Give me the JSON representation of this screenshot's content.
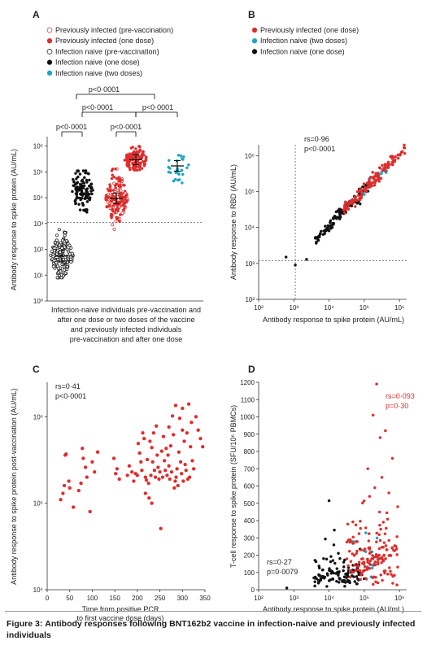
{
  "colors": {
    "red": "#e02c2c",
    "black": "#111111",
    "cyan": "#1ba6bd",
    "axis": "#333333",
    "dash": "#666666"
  },
  "caption": {
    "label": "Figure 3:",
    "text": "Antibody responses following BNT162b2 vaccine in infection-naive and previously infected individuals"
  },
  "chart_data": [
    {
      "panel": "A",
      "type": "scatter",
      "ylabel": "Antibody response to spike protein (AU/mL)",
      "xlabel_lines": [
        "Infection-naive individuals pre-vaccination and",
        "after one dose or two doses of the vaccine",
        "and previously infected individuals",
        "pre-vaccination and after one dose"
      ],
      "y_ticks": [
        {
          "value": 1,
          "label": "10⁰"
        },
        {
          "value": 10,
          "label": "10¹"
        },
        {
          "value": 100,
          "label": "10²"
        },
        {
          "value": 1000,
          "label": "10³"
        },
        {
          "value": 10000,
          "label": "10⁴"
        },
        {
          "value": 100000,
          "label": "10⁵"
        },
        {
          "value": 1000000,
          "label": "10⁶"
        }
      ],
      "ylim": [
        1,
        2000000
      ],
      "yscale": "log",
      "threshold": 1100,
      "legend": [
        {
          "name": "Previously infected (pre-vaccination)",
          "color": "#e02c2c",
          "style": "open"
        },
        {
          "name": "Previously infected (one dose)",
          "color": "#e02c2c",
          "style": "filled"
        },
        {
          "name": "Infection naive (pre-vaccination)",
          "color": "#111111",
          "style": "open"
        },
        {
          "name": "Infection naive (one dose)",
          "color": "#111111",
          "style": "filled"
        },
        {
          "name": "Infection naive (two doses)",
          "color": "#1ba6bd",
          "style": "filled"
        }
      ],
      "groups": [
        {
          "name": "Infection naive (pre-vaccination)",
          "median": 55,
          "spread": [
            8,
            900
          ],
          "n": 160
        },
        {
          "name": "Infection naive (one dose)",
          "median": 22000,
          "spread": [
            700,
            110000
          ],
          "n": 110
        },
        {
          "name": "Previously infected (pre-vaccination) / Infection naive (two doses)",
          "median": 9500,
          "spread": [
            600,
            130000
          ],
          "n": 190
        },
        {
          "name": "Previously infected (one dose)",
          "median": 300000,
          "spread": [
            80000,
            1500000
          ],
          "n": 110
        },
        {
          "name": "Infection naive (two doses)",
          "median": 170000,
          "spread": [
            15000,
            600000
          ],
          "n": 26
        }
      ],
      "comparisons": [
        "p<0·0001",
        "p<0·0001",
        "p<0·0001",
        "p<0·0001",
        "p<0·0001"
      ]
    },
    {
      "panel": "B",
      "type": "scatter",
      "xscale": "log",
      "yscale": "log",
      "xlabel": "Antibody response to spike protein (AU/mL)",
      "ylabel": "Antibody response to RBD (AU/mL)",
      "x_ticks": [
        {
          "value": 100,
          "label": "10²"
        },
        {
          "value": 1000,
          "label": "10³"
        },
        {
          "value": 10000,
          "label": "10⁴"
        },
        {
          "value": 100000,
          "label": "10⁵"
        },
        {
          "value": 1000000,
          "label": "10⁶"
        }
      ],
      "y_ticks": [
        {
          "value": 100,
          "label": "10²"
        },
        {
          "value": 1000,
          "label": "10³"
        },
        {
          "value": 10000,
          "label": "10⁴"
        },
        {
          "value": 100000,
          "label": "10⁵"
        },
        {
          "value": 1000000,
          "label": "10⁶"
        }
      ],
      "xlim": [
        100,
        1600000
      ],
      "ylim": [
        100,
        2000000
      ],
      "threshold_x": 1100,
      "threshold_y": 1200,
      "annotation_lines": [
        "rs=0·96",
        "p<0·0001"
      ],
      "legend": [
        {
          "name": "Previously infected (one dose)",
          "color": "#e02c2c"
        },
        {
          "name": "Infection naive (two doses)",
          "color": "#1ba6bd"
        },
        {
          "name": "Infection naive (one dose)",
          "color": "#111111"
        }
      ]
    },
    {
      "panel": "C",
      "type": "scatter",
      "yscale": "log",
      "xlabel_lines": [
        "Time from positive PCR",
        "to first vaccine dose (days)"
      ],
      "ylabel": "Antibody response to spike protein post-vaccination (AU/mL)",
      "x_ticks": [
        0,
        50,
        100,
        150,
        200,
        250,
        300,
        350
      ],
      "xlim": [
        0,
        350
      ],
      "y_ticks": [
        {
          "value": 10000,
          "label": "10⁴"
        },
        {
          "value": 100000,
          "label": "10⁵"
        },
        {
          "value": 1000000,
          "label": "10⁶"
        }
      ],
      "ylim": [
        10000,
        2500000
      ],
      "annotation_lines": [
        "rs=0·41",
        "p<0·0001"
      ],
      "points": [
        [
          30,
          110000
        ],
        [
          35,
          130000
        ],
        [
          38,
          160000
        ],
        [
          40,
          360000
        ],
        [
          42,
          370000
        ],
        [
          48,
          180000
        ],
        [
          50,
          150000
        ],
        [
          58,
          90000
        ],
        [
          70,
          140000
        ],
        [
          75,
          170000
        ],
        [
          78,
          430000
        ],
        [
          80,
          330000
        ],
        [
          85,
          260000
        ],
        [
          88,
          200000
        ],
        [
          95,
          80000
        ],
        [
          100,
          300000
        ],
        [
          105,
          230000
        ],
        [
          112,
          390000
        ],
        [
          148,
          330000
        ],
        [
          152,
          220000
        ],
        [
          155,
          250000
        ],
        [
          160,
          190000
        ],
        [
          178,
          210000
        ],
        [
          182,
          270000
        ],
        [
          188,
          230000
        ],
        [
          192,
          180000
        ],
        [
          196,
          220000
        ],
        [
          200,
          210000
        ],
        [
          202,
          490000
        ],
        [
          205,
          380000
        ],
        [
          208,
          300000
        ],
        [
          210,
          240000
        ],
        [
          212,
          650000
        ],
        [
          215,
          560000
        ],
        [
          218,
          200000
        ],
        [
          220,
          185000
        ],
        [
          222,
          320000
        ],
        [
          225,
          170000
        ],
        [
          228,
          520000
        ],
        [
          230,
          210000
        ],
        [
          232,
          440000
        ],
        [
          234,
          300000
        ],
        [
          236,
          650000
        ],
        [
          238,
          240000
        ],
        [
          240,
          200000
        ],
        [
          242,
          780000
        ],
        [
          244,
          360000
        ],
        [
          246,
          260000
        ],
        [
          248,
          190000
        ],
        [
          250,
          230000
        ],
        [
          252,
          51000
        ],
        [
          254,
          400000
        ],
        [
          256,
          200000
        ],
        [
          258,
          590000
        ],
        [
          260,
          310000
        ],
        [
          262,
          240000
        ],
        [
          264,
          430000
        ],
        [
          266,
          210000
        ],
        [
          268,
          360000
        ],
        [
          270,
          270000
        ],
        [
          272,
          190000
        ],
        [
          274,
          460000
        ],
        [
          276,
          230000
        ],
        [
          278,
          1020000
        ],
        [
          280,
          620000
        ],
        [
          282,
          150000
        ],
        [
          284,
          180000
        ],
        [
          286,
          200000
        ],
        [
          288,
          250000
        ],
        [
          290,
          160000
        ],
        [
          292,
          390000
        ],
        [
          294,
          960000
        ],
        [
          296,
          300000
        ],
        [
          298,
          220000
        ],
        [
          300,
          700000
        ],
        [
          302,
          180000
        ],
        [
          304,
          520000
        ],
        [
          306,
          280000
        ],
        [
          308,
          240000
        ],
        [
          310,
          650000
        ],
        [
          312,
          190000
        ],
        [
          314,
          1400000
        ],
        [
          316,
          200000
        ],
        [
          318,
          450000
        ],
        [
          320,
          860000
        ],
        [
          322,
          310000
        ],
        [
          325,
          250000
        ],
        [
          330,
          1000000
        ],
        [
          335,
          700000
        ],
        [
          340,
          560000
        ],
        [
          345,
          450000
        ],
        [
          218,
          130000
        ],
        [
          226,
          115000
        ],
        [
          232,
          100000
        ],
        [
          270,
          760000
        ],
        [
          300,
          1250000
        ],
        [
          285,
          1350000
        ]
      ]
    },
    {
      "panel": "D",
      "type": "scatter",
      "xscale": "log",
      "xlabel": "Antibody response to spike protein (AU/mL)",
      "ylabel": "T-cell response to spike protein (SFU/10⁶ PBMCs)",
      "x_ticks": [
        {
          "value": 100,
          "label": "10²"
        },
        {
          "value": 1000,
          "label": "10³"
        },
        {
          "value": 10000,
          "label": "10⁴"
        },
        {
          "value": 100000,
          "label": "10⁵"
        },
        {
          "value": 1000000,
          "label": "10⁶"
        }
      ],
      "xlim": [
        100,
        1600000
      ],
      "y_ticks": [
        0,
        100,
        200,
        300,
        400,
        500,
        600,
        700,
        800,
        900,
        1000,
        1100,
        1200
      ],
      "ylim": [
        0,
        1200
      ],
      "annotation_red_lines": [
        "rs=0·093",
        "p=0·30"
      ],
      "annotation_black_lines": [
        "rs=0·27",
        "p=0·0079"
      ]
    }
  ]
}
